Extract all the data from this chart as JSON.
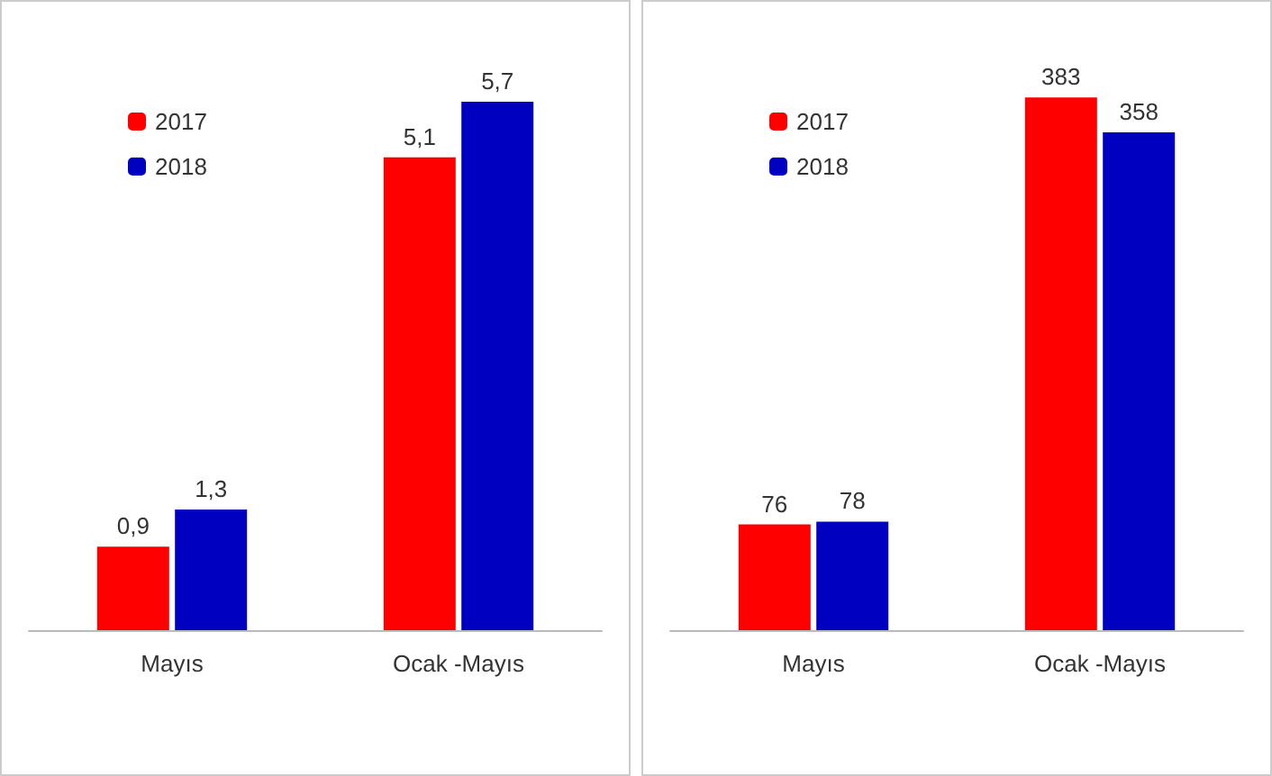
{
  "chart_data": [
    {
      "type": "bar",
      "categories": [
        "Mayıs",
        "Ocak -Mayıs"
      ],
      "legend": "top left",
      "grid": false,
      "series": [
        {
          "name": "2017",
          "color": "#ff0000",
          "values": [
            0.9,
            5.1
          ],
          "value_labels": [
            "0,9",
            "5,1"
          ]
        },
        {
          "name": "2018",
          "color": "#0000c0",
          "values": [
            1.3,
            5.7
          ],
          "value_labels": [
            "1,3",
            "5,7"
          ]
        }
      ]
    },
    {
      "type": "bar",
      "categories": [
        "Mayıs",
        "Ocak -Mayıs"
      ],
      "legend": "top left",
      "grid": false,
      "series": [
        {
          "name": "2017",
          "color": "#ff0000",
          "values": [
            76,
            383
          ],
          "value_labels": [
            "76",
            "383"
          ]
        },
        {
          "name": "2018",
          "color": "#0000c0",
          "values": [
            78,
            358
          ],
          "value_labels": [
            "78",
            "358"
          ]
        }
      ]
    }
  ]
}
